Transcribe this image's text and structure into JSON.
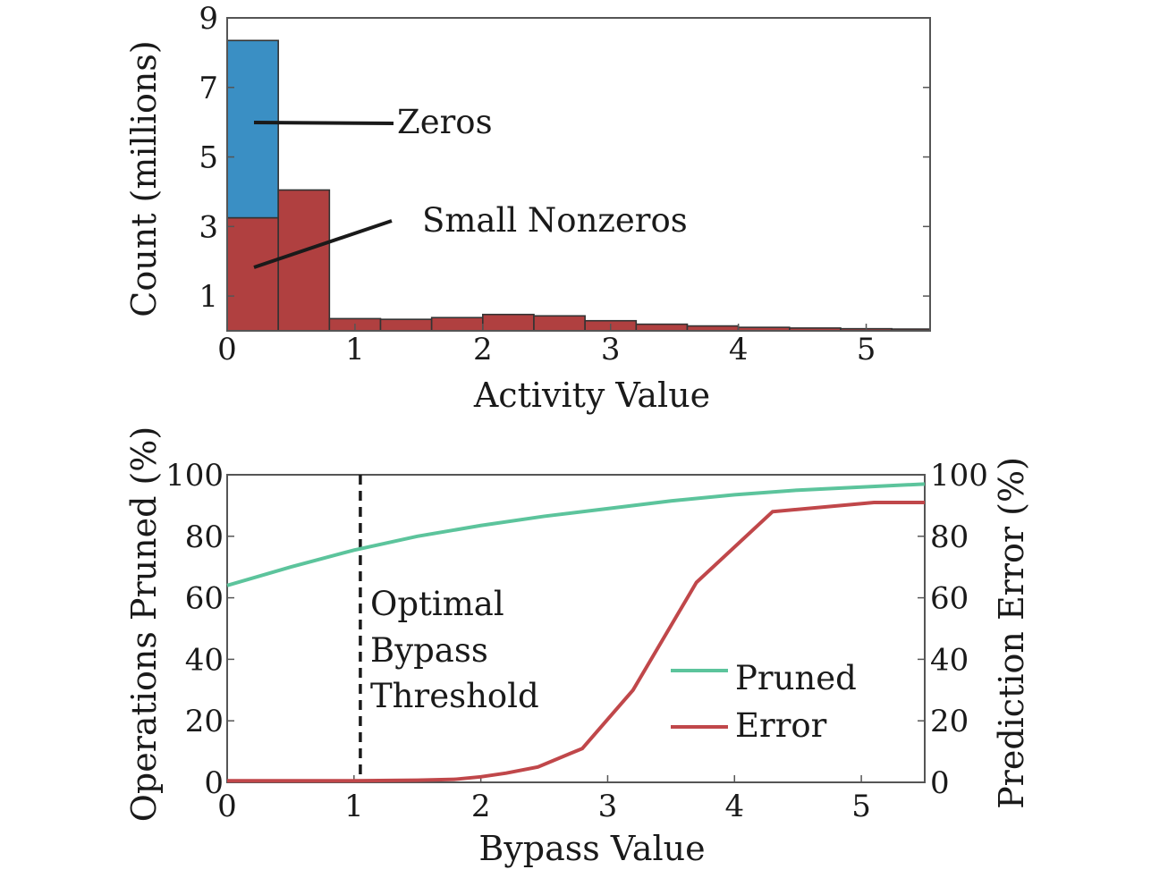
{
  "chart_data": [
    {
      "type": "bar",
      "title": "",
      "xlabel": "Activity Value",
      "ylabel": "Count (millions)",
      "xlim": [
        0,
        5.5
      ],
      "ylim": [
        0,
        9
      ],
      "xticks": [
        "0",
        "1",
        "2",
        "3",
        "4",
        "5"
      ],
      "yticks": [
        "1",
        "3",
        "5",
        "7",
        "9"
      ],
      "bin_width": 0.4,
      "bins": [
        0,
        0.4,
        0.8,
        1.2,
        1.6,
        2.0,
        2.4,
        2.8,
        3.2,
        3.6,
        4.0,
        4.4,
        4.8,
        5.2
      ],
      "series": [
        {
          "name": "Small Nonzeros",
          "color": "#b04040",
          "values": [
            3.25,
            4.05,
            0.35,
            0.33,
            0.38,
            0.47,
            0.43,
            0.29,
            0.19,
            0.14,
            0.1,
            0.08,
            0.06,
            0.05
          ]
        },
        {
          "name": "Zeros",
          "color": "#3a8fc4",
          "values": [
            5.1,
            0,
            0,
            0,
            0,
            0,
            0,
            0,
            0,
            0,
            0,
            0,
            0,
            0
          ]
        }
      ],
      "annotations": [
        {
          "text": "Zeros",
          "target": "zeros"
        },
        {
          "text": "Small Nonzeros",
          "target": "small-nonzeros"
        }
      ],
      "grid": false
    },
    {
      "type": "line",
      "title": "",
      "xlabel": "Bypass Value",
      "ylabel": "Operations Pruned (%)",
      "ylabel_right": "Prediction Error (%)",
      "xlim": [
        0,
        5.5
      ],
      "ylim": [
        0,
        100
      ],
      "xticks": [
        "0",
        "1",
        "2",
        "3",
        "4",
        "5"
      ],
      "yticks": [
        "0",
        "20",
        "40",
        "60",
        "80",
        "100"
      ],
      "yticks_right": [
        "0",
        "20",
        "40",
        "60",
        "80",
        "100"
      ],
      "series": [
        {
          "name": "Pruned",
          "color": "#5cc49c",
          "x": [
            0,
            0.5,
            1.0,
            1.5,
            2.0,
            2.5,
            3.0,
            3.5,
            4.0,
            4.5,
            5.0,
            5.5
          ],
          "y": [
            64,
            70,
            75.5,
            80,
            83.5,
            86.5,
            89,
            91.5,
            93.5,
            95,
            96,
            97
          ]
        },
        {
          "name": "Error",
          "color": "#c0474a",
          "x": [
            0,
            1.0,
            1.5,
            1.8,
            2.0,
            2.2,
            2.45,
            2.8,
            3.2,
            3.7,
            4.3,
            5.1,
            5.5
          ],
          "y": [
            0.5,
            0.5,
            0.7,
            1.0,
            1.8,
            3,
            5,
            11,
            30,
            65,
            88,
            91,
            91
          ]
        }
      ],
      "vline": {
        "x": 1.05,
        "label_lines": [
          "Optimal",
          "Bypass",
          "Threshold"
        ]
      },
      "legend": "center-right",
      "grid": false
    }
  ]
}
